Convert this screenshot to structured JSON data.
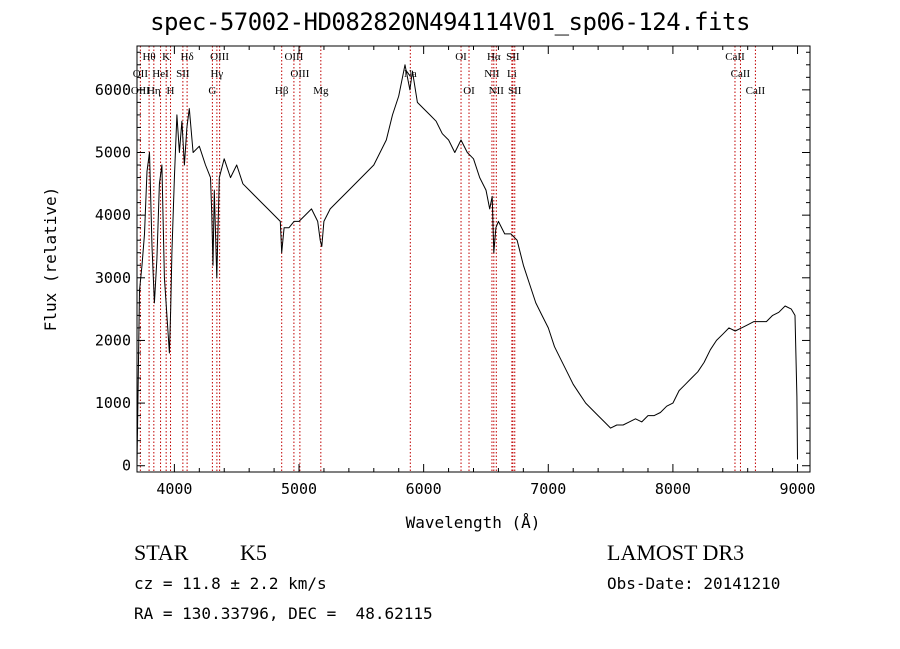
{
  "title": "spec-57002-HD082820N494114V01_sp06-124.fits",
  "info": {
    "obj_class": "STAR",
    "obj_subclass": "K5",
    "survey": "LAMOST DR3",
    "cz": "cz = 11.8 ± 2.2 km/s",
    "obs_date": "Obs-Date: 20141210",
    "radec": "RA = 130.33796, DEC =  48.62115"
  },
  "colors": {
    "spectrum": "#000000",
    "line_markers": "#c00000",
    "axes": "#000000"
  },
  "chart_data": {
    "type": "line",
    "xlabel": "Wavelength (Å)",
    "ylabel": "Flux (relative)",
    "xlim": [
      3700,
      9100
    ],
    "ylim": [
      -100,
      6700
    ],
    "xticks": [
      4000,
      5000,
      6000,
      7000,
      8000,
      9000
    ],
    "yticks": [
      0,
      1000,
      2000,
      3000,
      4000,
      5000,
      6000
    ],
    "series": [
      {
        "x": [
          3700,
          3720,
          3740,
          3760,
          3780,
          3800,
          3820,
          3840,
          3860,
          3880,
          3900,
          3920,
          3940,
          3960,
          3970,
          3980,
          4000,
          4020,
          4040,
          4060,
          4080,
          4100,
          4120,
          4150,
          4200,
          4250,
          4290,
          4300,
          4310,
          4320,
          4340,
          4360,
          4400,
          4450,
          4500,
          4550,
          4600,
          4650,
          4700,
          4750,
          4800,
          4850,
          4861,
          4880,
          4920,
          4960,
          5000,
          5050,
          5100,
          5150,
          5170,
          5183,
          5200,
          5250,
          5300,
          5400,
          5500,
          5600,
          5700,
          5750,
          5800,
          5850,
          5890,
          5910,
          5950,
          6000,
          6050,
          6100,
          6150,
          6200,
          6250,
          6300,
          6350,
          6400,
          6450,
          6500,
          6530,
          6550,
          6563,
          6580,
          6600,
          6650,
          6700,
          6750,
          6800,
          6850,
          6900,
          6950,
          7000,
          7050,
          7100,
          7150,
          7200,
          7250,
          7300,
          7350,
          7400,
          7450,
          7500,
          7550,
          7600,
          7650,
          7700,
          7750,
          7800,
          7850,
          7900,
          7950,
          8000,
          8050,
          8100,
          8150,
          8200,
          8250,
          8300,
          8350,
          8400,
          8450,
          8500,
          8550,
          8600,
          8650,
          8700,
          8750,
          8800,
          8850,
          8900,
          8950,
          8980,
          8995,
          9000
        ],
        "y": [
          0,
          2800,
          3200,
          3700,
          4700,
          5000,
          3500,
          2600,
          3300,
          4500,
          4800,
          3000,
          2400,
          1800,
          2500,
          3400,
          4600,
          5600,
          5000,
          5500,
          4800,
          5400,
          5700,
          5000,
          5100,
          4800,
          4600,
          4000,
          3200,
          4400,
          3000,
          4600,
          4900,
          4600,
          4800,
          4500,
          4400,
          4300,
          4200,
          4100,
          4000,
          3900,
          3400,
          3800,
          3800,
          3900,
          3900,
          4000,
          4100,
          3900,
          3600,
          3500,
          3900,
          4100,
          4200,
          4400,
          4600,
          4800,
          5200,
          5600,
          5900,
          6400,
          6000,
          6300,
          5800,
          5700,
          5600,
          5500,
          5300,
          5200,
          5000,
          5200,
          5000,
          4900,
          4600,
          4400,
          4100,
          4300,
          3400,
          3800,
          3900,
          3700,
          3700,
          3600,
          3200,
          2900,
          2600,
          2400,
          2200,
          1900,
          1700,
          1500,
          1300,
          1150,
          1000,
          900,
          800,
          700,
          600,
          650,
          650,
          700,
          750,
          700,
          800,
          800,
          850,
          950,
          1000,
          1200,
          1300,
          1400,
          1500,
          1650,
          1850,
          2000,
          2100,
          2200,
          2150,
          2200,
          2250,
          2300,
          2300,
          2300,
          2400,
          2450,
          2550,
          2500,
          2400,
          1100,
          100
        ]
      }
    ],
    "lines_top": [
      {
        "label": "Hθ",
        "x": 3797
      },
      {
        "label": "K",
        "x": 3934
      },
      {
        "label": "Hδ",
        "x": 4102
      },
      {
        "label": "OIII",
        "x": 4363
      },
      {
        "label": "OIII",
        "x": 4959
      },
      {
        "label": "OI",
        "x": 6300
      },
      {
        "label": "Hα",
        "x": 6563
      },
      {
        "label": "SII",
        "x": 6716
      },
      {
        "label": "CaII",
        "x": 8498
      }
    ],
    "lines_second": [
      {
        "label": "OII",
        "x": 3727
      },
      {
        "label": "HeI",
        "x": 3889
      },
      {
        "label": "SII",
        "x": 4068
      },
      {
        "label": "Hγ",
        "x": 4341
      },
      {
        "label": "OIII",
        "x": 5007
      },
      {
        "label": "Na",
        "x": 5893
      },
      {
        "label": "NII",
        "x": 6548
      },
      {
        "label": "Li",
        "x": 6708
      },
      {
        "label": "CaII",
        "x": 8542
      }
    ],
    "lines_third": [
      {
        "label": "OIII",
        "x": 3727
      },
      {
        "label": "Hη",
        "x": 3835
      },
      {
        "label": "H",
        "x": 3969
      },
      {
        "label": "G",
        "x": 4305
      },
      {
        "label": "Hβ",
        "x": 4861
      },
      {
        "label": "Mg",
        "x": 5175
      },
      {
        "label": "OI",
        "x": 6364
      },
      {
        "label": "NII",
        "x": 6583
      },
      {
        "label": "SII",
        "x": 6731
      },
      {
        "label": "CaII",
        "x": 8662
      }
    ]
  }
}
